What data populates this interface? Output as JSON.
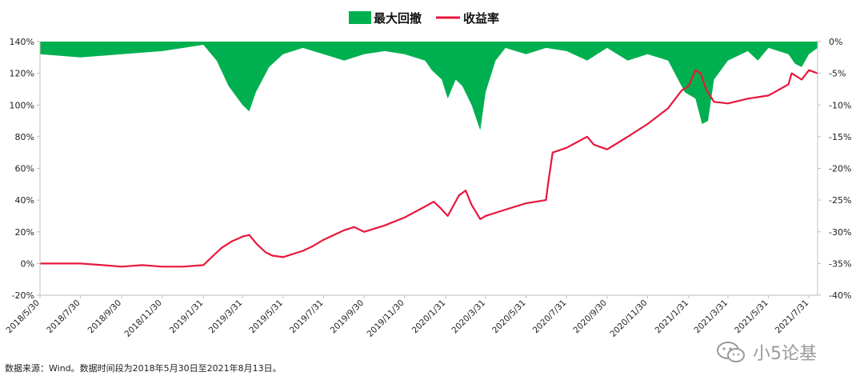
{
  "chart_data": {
    "type": "area+line",
    "title": "",
    "legend": {
      "placement": "top-center",
      "entries": [
        {
          "name": "最大回撤",
          "color": "#00b050",
          "kind": "area"
        },
        {
          "name": "收益率",
          "color": "#e8173d",
          "kind": "line"
        }
      ]
    },
    "left_axis": {
      "ylim": [
        -20,
        140
      ],
      "ticks": [
        "140%",
        "120%",
        "100%",
        "80%",
        "60%",
        "40%",
        "20%",
        "0%",
        "-20%"
      ]
    },
    "right_axis": {
      "ylim": [
        -40,
        0
      ],
      "ticks": [
        "0%",
        "-5%",
        "-10%",
        "-15%",
        "-20%",
        "-25%",
        "-30%",
        "-35%",
        "-40%"
      ]
    },
    "x_ticks": [
      "2018/5/30",
      "2018/7/30",
      "2018/9/30",
      "2018/11/30",
      "2019/1/31",
      "2019/3/31",
      "2019/5/31",
      "2019/7/31",
      "2019/9/30",
      "2019/11/30",
      "2020/1/31",
      "2020/3/31",
      "2020/5/31",
      "2020/7/31",
      "2020/9/30",
      "2020/11/30",
      "2021/1/31",
      "2021/3/31",
      "2021/5/31",
      "2021/7/31"
    ],
    "return_series": {
      "name": "收益率",
      "x": [
        "2018/5/30",
        "2018/7/1",
        "2018/7/30",
        "2018/9/1",
        "2018/9/30",
        "2018/10/31",
        "2018/11/30",
        "2018/12/31",
        "2019/1/31",
        "2019/2/15",
        "2019/2/28",
        "2019/3/15",
        "2019/3/31",
        "2019/4/10",
        "2019/4/22",
        "2019/5/5",
        "2019/5/15",
        "2019/5/31",
        "2019/6/30",
        "2019/7/15",
        "2019/7/31",
        "2019/8/31",
        "2019/9/15",
        "2019/9/30",
        "2019/10/31",
        "2019/11/30",
        "2019/12/31",
        "2020/1/13",
        "2020/1/23",
        "2020/2/3",
        "2020/2/20",
        "2020/3/1",
        "2020/3/10",
        "2020/3/23",
        "2020/3/31",
        "2020/4/30",
        "2020/5/31",
        "2020/6/30",
        "2020/7/3",
        "2020/7/10",
        "2020/7/31",
        "2020/8/31",
        "2020/9/10",
        "2020/9/30",
        "2020/10/31",
        "2020/11/30",
        "2020/12/31",
        "2021/1/20",
        "2021/1/31",
        "2021/2/10",
        "2021/2/18",
        "2021/2/26",
        "2021/3/10",
        "2021/3/31",
        "2021/4/30",
        "2021/5/31",
        "2021/6/30",
        "2021/7/5",
        "2021/7/20",
        "2021/7/31",
        "2021/8/13"
      ],
      "values": [
        0,
        0,
        0,
        -1,
        -2,
        -1,
        -2,
        -2,
        -1,
        5,
        10,
        14,
        17,
        18,
        12,
        7,
        5,
        4,
        8,
        11,
        15,
        21,
        23,
        20,
        24,
        29,
        36,
        39,
        35,
        30,
        43,
        46,
        37,
        28,
        30,
        34,
        38,
        40,
        50,
        70,
        73,
        80,
        75,
        72,
        80,
        88,
        98,
        109,
        112,
        122,
        120,
        110,
        102,
        101,
        104,
        106,
        113,
        120,
        116,
        122,
        120
      ]
    },
    "drawdown_series": {
      "name": "最大回撤",
      "x": [
        "2018/5/30",
        "2018/7/30",
        "2018/9/30",
        "2018/11/30",
        "2019/1/1",
        "2019/1/31",
        "2019/2/20",
        "2019/3/10",
        "2019/3/31",
        "2019/4/10",
        "2019/4/20",
        "2019/5/10",
        "2019/5/31",
        "2019/6/30",
        "2019/7/31",
        "2019/8/31",
        "2019/9/30",
        "2019/10/31",
        "2019/11/30",
        "2019/12/31",
        "2020/1/10",
        "2020/1/25",
        "2020/2/3",
        "2020/2/15",
        "2020/2/25",
        "2020/3/10",
        "2020/3/23",
        "2020/3/31",
        "2020/4/15",
        "2020/4/30",
        "2020/5/31",
        "2020/6/30",
        "2020/7/31",
        "2020/8/31",
        "2020/9/15",
        "2020/9/30",
        "2020/10/31",
        "2020/11/30",
        "2020/12/31",
        "2021/1/10",
        "2021/1/25",
        "2021/2/10",
        "2021/2/20",
        "2021/3/1",
        "2021/3/10",
        "2021/3/31",
        "2021/4/30",
        "2021/5/15",
        "2021/5/31",
        "2021/6/30",
        "2021/7/10",
        "2021/7/20",
        "2021/7/31",
        "2021/8/13"
      ],
      "values": [
        -2,
        -2.5,
        -2,
        -1.5,
        -1,
        -0.5,
        -3,
        -7,
        -10,
        -11,
        -8,
        -4,
        -2,
        -1,
        -2,
        -3,
        -2,
        -1.5,
        -2,
        -3,
        -4.5,
        -6,
        -9,
        -6,
        -7,
        -10,
        -14,
        -8,
        -3,
        -1,
        -2,
        -1,
        -1.5,
        -3,
        -2,
        -1,
        -3,
        -2,
        -3,
        -5,
        -8,
        -9,
        -13,
        -12.5,
        -6,
        -3,
        -1.5,
        -3,
        -1,
        -2,
        -3.5,
        -4,
        -2,
        -1
      ]
    }
  },
  "source_note": "数据来源：Wind。数据时间段为2018年5月30日至2021年8月13日。",
  "watermark": {
    "icon": "wechat-icon",
    "text": "小5论基"
  }
}
